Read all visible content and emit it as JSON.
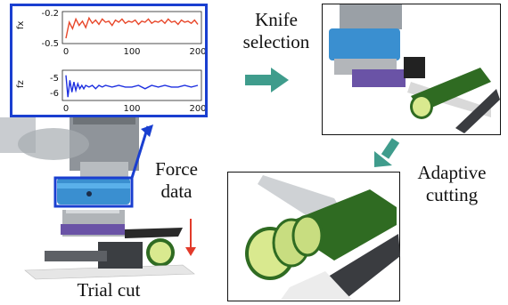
{
  "labels": {
    "knife_selection_line1": "Knife",
    "knife_selection_line2": "selection",
    "force_data_line1": "Force",
    "force_data_line2": "data",
    "adaptive_cutting_line1": "Adaptive",
    "adaptive_cutting_line2": "cutting",
    "trial_cut": "Trial cut"
  },
  "colors": {
    "highlight_blue": "#1a3fd0",
    "fx_line": "#e8472a",
    "fz_line": "#1d2fe0",
    "arrow_teal": "#3f9c8c",
    "down_arrow_red": "#e23a2a"
  },
  "chart_data": [
    {
      "type": "line",
      "ylabel": "fx",
      "xlim": [
        0,
        200
      ],
      "ylim": [
        -0.5,
        -0.2
      ],
      "x_ticks": [
        "0",
        "100",
        "200"
      ],
      "y_ticks": [
        "-0.2",
        "-0.5"
      ],
      "series": [
        {
          "color": "#e8472a",
          "x": [
            0,
            5,
            10,
            15,
            20,
            25,
            30,
            35,
            40,
            45,
            50,
            55,
            60,
            65,
            70,
            75,
            80,
            85,
            90,
            95,
            100,
            105,
            110,
            115,
            120,
            125,
            130,
            135,
            140,
            145,
            150,
            155,
            160,
            165,
            170,
            175,
            180,
            185,
            190,
            195,
            200
          ],
          "y": [
            -0.45,
            -0.3,
            -0.36,
            -0.27,
            -0.33,
            -0.29,
            -0.35,
            -0.26,
            -0.31,
            -0.28,
            -0.32,
            -0.27,
            -0.3,
            -0.29,
            -0.33,
            -0.28,
            -0.3,
            -0.27,
            -0.31,
            -0.29,
            -0.3,
            -0.28,
            -0.32,
            -0.29,
            -0.3,
            -0.27,
            -0.31,
            -0.29,
            -0.3,
            -0.28,
            -0.31,
            -0.27,
            -0.3,
            -0.29,
            -0.32,
            -0.28,
            -0.3,
            -0.29,
            -0.31,
            -0.28,
            -0.32
          ]
        }
      ]
    },
    {
      "type": "line",
      "ylabel": "fz",
      "xlim": [
        0,
        200
      ],
      "ylim": [
        -6.4,
        -4.6
      ],
      "x_ticks": [
        "0",
        "100",
        "200"
      ],
      "y_ticks": [
        "-5",
        "-6"
      ],
      "series": [
        {
          "color": "#1d2fe0",
          "x": [
            0,
            3,
            6,
            9,
            12,
            15,
            18,
            21,
            24,
            27,
            30,
            35,
            40,
            45,
            50,
            55,
            60,
            70,
            80,
            90,
            100,
            110,
            120,
            130,
            140,
            150,
            160,
            170,
            180,
            190,
            200
          ],
          "y": [
            -4.9,
            -6.2,
            -5.2,
            -5.9,
            -5.3,
            -5.8,
            -5.4,
            -5.7,
            -5.5,
            -5.7,
            -5.5,
            -5.6,
            -5.5,
            -5.7,
            -5.5,
            -5.6,
            -5.5,
            -5.6,
            -5.5,
            -5.6,
            -5.6,
            -5.5,
            -5.7,
            -5.5,
            -5.6,
            -5.5,
            -5.6,
            -5.6,
            -5.5,
            -5.6,
            -5.5
          ]
        }
      ]
    }
  ]
}
